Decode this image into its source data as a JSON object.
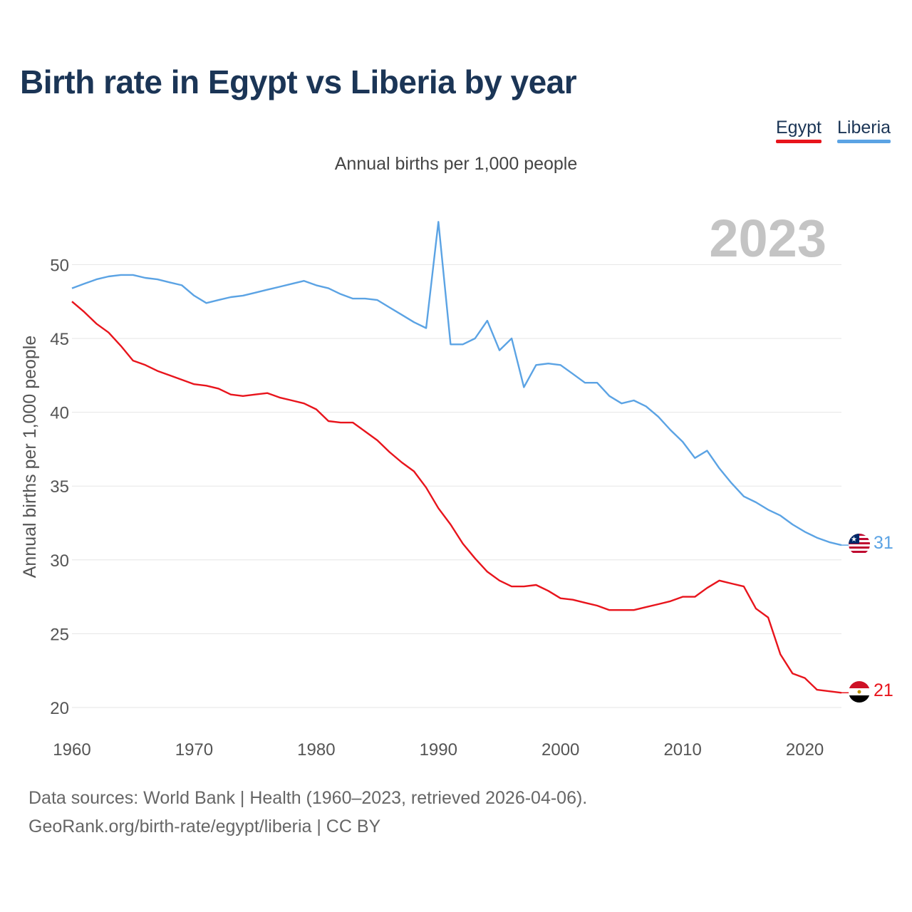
{
  "title": "Birth rate in Egypt vs Liberia by year",
  "subtitle": "Annual births per 1,000 people",
  "legend": [
    {
      "name": "Egypt",
      "color": "#e8141c"
    },
    {
      "name": "Liberia",
      "color": "#5ba3e4"
    }
  ],
  "year_watermark": "2023",
  "source": {
    "line1": "Data sources: World Bank | Health (1960–2023, retrieved 2026-04-06).",
    "line2": "GeoRank.org/birth-rate/egypt/liberia | CC BY"
  },
  "chart_data": {
    "type": "line",
    "title": "Birth rate in Egypt vs Liberia by year",
    "ylabel": "Annual births per 1,000 people",
    "xlabel": "",
    "xlim": [
      1960,
      2023
    ],
    "ylim": [
      20,
      53
    ],
    "x_ticks": [
      1960,
      1970,
      1980,
      1990,
      2000,
      2010,
      2020
    ],
    "y_ticks": [
      20,
      25,
      30,
      35,
      40,
      45,
      50
    ],
    "grid": true,
    "x": [
      1960,
      1961,
      1962,
      1963,
      1964,
      1965,
      1966,
      1967,
      1968,
      1969,
      1970,
      1971,
      1972,
      1973,
      1974,
      1975,
      1976,
      1977,
      1978,
      1979,
      1980,
      1981,
      1982,
      1983,
      1984,
      1985,
      1986,
      1987,
      1988,
      1989,
      1990,
      1991,
      1992,
      1993,
      1994,
      1995,
      1996,
      1997,
      1998,
      1999,
      2000,
      2001,
      2002,
      2003,
      2004,
      2005,
      2006,
      2007,
      2008,
      2009,
      2010,
      2011,
      2012,
      2013,
      2014,
      2015,
      2016,
      2017,
      2018,
      2019,
      2020,
      2021,
      2022,
      2023
    ],
    "series": [
      {
        "name": "Egypt",
        "color": "#e8141c",
        "end_label": "21",
        "values": [
          47.5,
          46.8,
          46.0,
          45.4,
          44.5,
          43.5,
          43.2,
          42.8,
          42.5,
          42.2,
          41.9,
          41.8,
          41.6,
          41.2,
          41.1,
          41.2,
          41.3,
          41.0,
          40.8,
          40.6,
          40.2,
          39.4,
          39.3,
          39.3,
          38.7,
          38.1,
          37.3,
          36.6,
          36.0,
          34.9,
          33.5,
          32.4,
          31.1,
          30.1,
          29.2,
          28.6,
          28.2,
          28.2,
          28.3,
          27.9,
          27.4,
          27.3,
          27.1,
          26.9,
          26.6,
          26.6,
          26.6,
          26.8,
          27.0,
          27.2,
          27.5,
          27.5,
          28.1,
          28.6,
          28.4,
          28.2,
          26.7,
          26.1,
          23.6,
          22.3,
          22.0,
          21.2,
          21.1,
          21.0
        ]
      },
      {
        "name": "Liberia",
        "color": "#5ba3e4",
        "end_label": "31",
        "values": [
          48.4,
          48.7,
          49.0,
          49.2,
          49.3,
          49.3,
          49.1,
          49.0,
          48.8,
          48.6,
          47.9,
          47.4,
          47.6,
          47.8,
          47.9,
          48.1,
          48.3,
          48.5,
          48.7,
          48.9,
          48.6,
          48.4,
          48.0,
          47.7,
          47.7,
          47.6,
          47.1,
          46.6,
          46.1,
          45.7,
          52.9,
          44.6,
          44.6,
          45.0,
          46.2,
          44.2,
          45.0,
          41.7,
          43.2,
          43.3,
          43.2,
          42.6,
          42.0,
          42.0,
          41.1,
          40.6,
          40.8,
          40.4,
          39.7,
          38.8,
          38.0,
          36.9,
          37.4,
          36.2,
          35.2,
          34.3,
          33.9,
          33.4,
          33.0,
          32.4,
          31.9,
          31.5,
          31.2,
          31.0
        ]
      }
    ]
  }
}
